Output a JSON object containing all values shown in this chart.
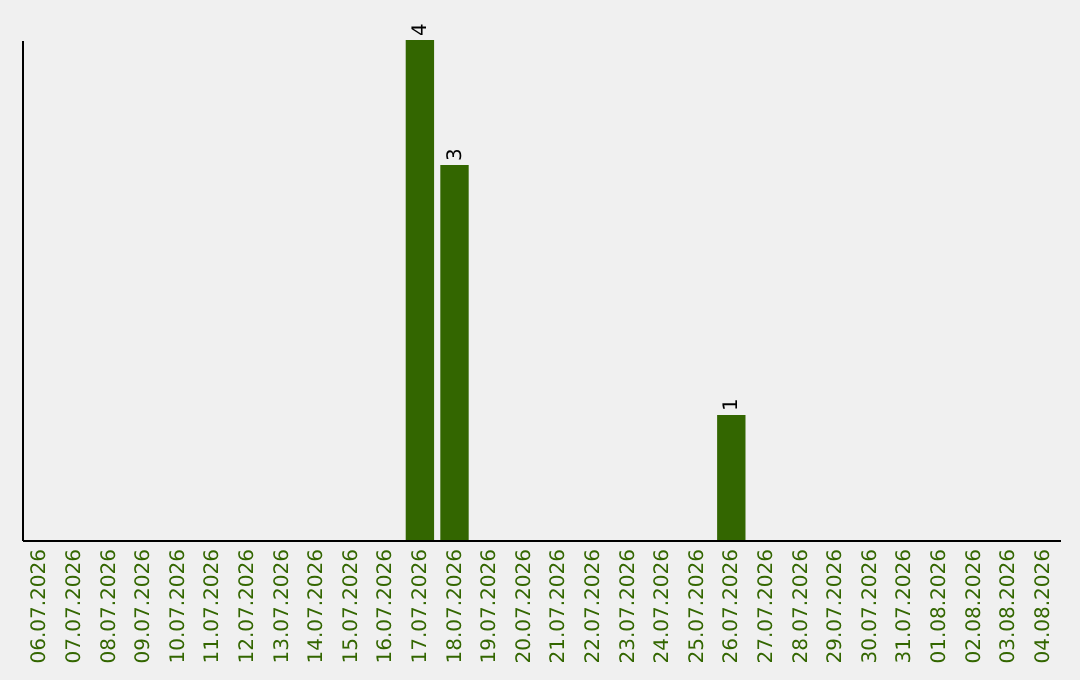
{
  "chart_data": {
    "type": "bar",
    "categories": [
      "06.07.2026",
      "07.07.2026",
      "08.07.2026",
      "09.07.2026",
      "10.07.2026",
      "11.07.2026",
      "12.07.2026",
      "13.07.2026",
      "14.07.2026",
      "15.07.2026",
      "16.07.2026",
      "17.07.2026",
      "18.07.2026",
      "19.07.2026",
      "20.07.2026",
      "21.07.2026",
      "22.07.2026",
      "23.07.2026",
      "24.07.2026",
      "25.07.2026",
      "26.07.2026",
      "27.07.2026",
      "28.07.2026",
      "29.07.2026",
      "30.07.2026",
      "31.07.2026",
      "01.08.2026",
      "02.08.2026",
      "03.08.2026",
      "04.08.2026"
    ],
    "values": [
      0,
      0,
      0,
      0,
      0,
      0,
      0,
      0,
      0,
      0,
      0,
      4,
      3,
      0,
      0,
      0,
      0,
      0,
      0,
      0,
      1,
      0,
      0,
      0,
      0,
      0,
      0,
      0,
      0,
      0
    ],
    "value_labels": [
      null,
      null,
      null,
      null,
      null,
      null,
      null,
      null,
      null,
      null,
      null,
      "4",
      "3",
      null,
      null,
      null,
      null,
      null,
      null,
      null,
      "1",
      null,
      null,
      null,
      null,
      null,
      null,
      null,
      null,
      null
    ],
    "color": "#336600"
  }
}
